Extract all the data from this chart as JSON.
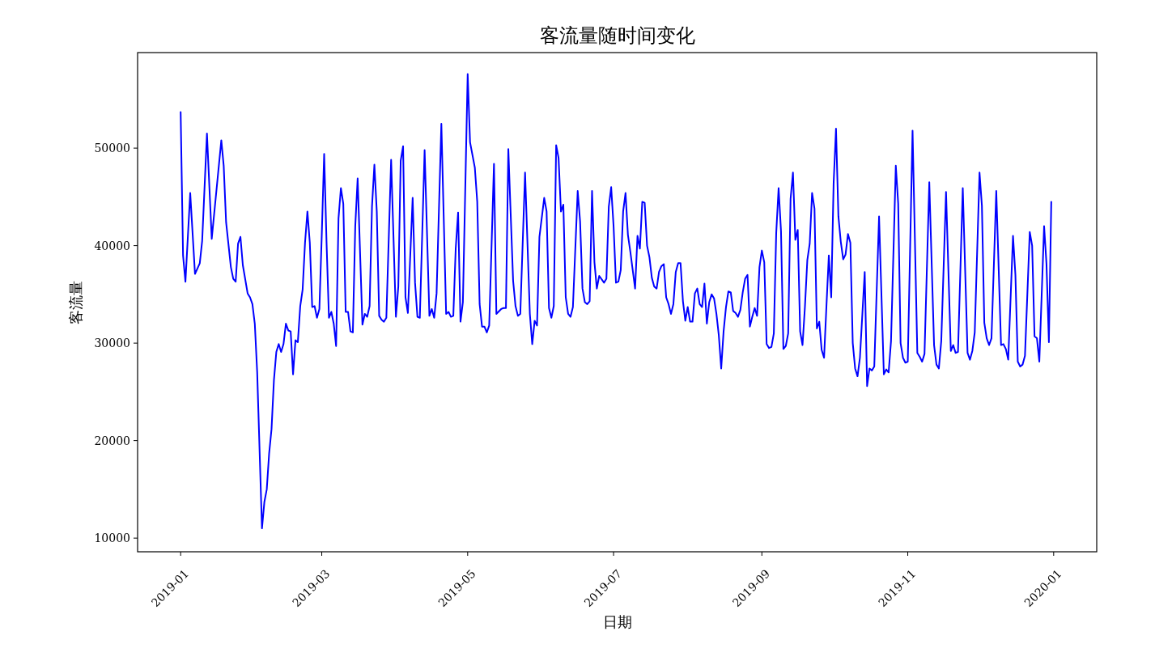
{
  "chart_data": {
    "type": "line",
    "title": "客流量随时间变化",
    "xlabel": "日期",
    "ylabel": "客流量",
    "color": "#0000ff",
    "xlim": [
      "2018-12-14",
      "2020-01-19"
    ],
    "ylim": [
      8600,
      59800
    ],
    "xticks": [
      "2019-01",
      "2019-03",
      "2019-05",
      "2019-07",
      "2019-09",
      "2019-11",
      "2020-01"
    ],
    "yticks": [
      10000,
      20000,
      30000,
      40000,
      50000
    ],
    "x": [
      "2019-01-01",
      "2019-01-02",
      "2019-01-03",
      "2019-01-05",
      "2019-01-07",
      "2019-01-09",
      "2019-01-10",
      "2019-01-12",
      "2019-01-14",
      "2019-01-18",
      "2019-01-19",
      "2019-01-20",
      "2019-01-22",
      "2019-01-23",
      "2019-01-24",
      "2019-01-25",
      "2019-01-26",
      "2019-01-27",
      "2019-01-29",
      "2019-01-30",
      "2019-01-31",
      "2019-02-01",
      "2019-02-02",
      "2019-02-04",
      "2019-02-05",
      "2019-02-06",
      "2019-02-07",
      "2019-02-08",
      "2019-02-09",
      "2019-02-10",
      "2019-02-11",
      "2019-02-12",
      "2019-02-13",
      "2019-02-14",
      "2019-02-15",
      "2019-02-16",
      "2019-02-17",
      "2019-02-18",
      "2019-02-19",
      "2019-02-20",
      "2019-02-21",
      "2019-02-22",
      "2019-02-23",
      "2019-02-24",
      "2019-02-25",
      "2019-02-26",
      "2019-02-27",
      "2019-02-28",
      "2019-03-01",
      "2019-03-02",
      "2019-03-03",
      "2019-03-04",
      "2019-03-05",
      "2019-03-06",
      "2019-03-07",
      "2019-03-08",
      "2019-03-09",
      "2019-03-10",
      "2019-03-11",
      "2019-03-12",
      "2019-03-13",
      "2019-03-14",
      "2019-03-15",
      "2019-03-16",
      "2019-03-18",
      "2019-03-19",
      "2019-03-20",
      "2019-03-21",
      "2019-03-22",
      "2019-03-23",
      "2019-03-24",
      "2019-03-25",
      "2019-03-26",
      "2019-03-27",
      "2019-03-28",
      "2019-03-30",
      "2019-04-01",
      "2019-04-02",
      "2019-04-03",
      "2019-04-04",
      "2019-04-05",
      "2019-04-06",
      "2019-04-08",
      "2019-04-09",
      "2019-04-10",
      "2019-04-11",
      "2019-04-13",
      "2019-04-15",
      "2019-04-16",
      "2019-04-17",
      "2019-04-18",
      "2019-04-20",
      "2019-04-22",
      "2019-04-23",
      "2019-04-24",
      "2019-04-25",
      "2019-04-26",
      "2019-04-27",
      "2019-04-28",
      "2019-04-29",
      "2019-05-01",
      "2019-05-02",
      "2019-05-04",
      "2019-05-05",
      "2019-05-06",
      "2019-05-07",
      "2019-05-08",
      "2019-05-09",
      "2019-05-10",
      "2019-05-12",
      "2019-05-13",
      "2019-05-15",
      "2019-05-16",
      "2019-05-17",
      "2019-05-18",
      "2019-05-20",
      "2019-05-21",
      "2019-05-22",
      "2019-05-23",
      "2019-05-25",
      "2019-05-27",
      "2019-05-28",
      "2019-05-29",
      "2019-05-30",
      "2019-05-31",
      "2019-06-02",
      "2019-06-03",
      "2019-06-04",
      "2019-06-05",
      "2019-06-06",
      "2019-06-07",
      "2019-06-08",
      "2019-06-09",
      "2019-06-10",
      "2019-06-11",
      "2019-06-12",
      "2019-06-13",
      "2019-06-14",
      "2019-06-16",
      "2019-06-17",
      "2019-06-18",
      "2019-06-19",
      "2019-06-20",
      "2019-06-21",
      "2019-06-22",
      "2019-06-23",
      "2019-06-24",
      "2019-06-25",
      "2019-06-27",
      "2019-06-28",
      "2019-06-29",
      "2019-06-30",
      "2019-07-01",
      "2019-07-02",
      "2019-07-03",
      "2019-07-04",
      "2019-07-05",
      "2019-07-06",
      "2019-07-07",
      "2019-07-08",
      "2019-07-10",
      "2019-07-11",
      "2019-07-12",
      "2019-07-13",
      "2019-07-14",
      "2019-07-15",
      "2019-07-16",
      "2019-07-17",
      "2019-07-18",
      "2019-07-19",
      "2019-07-20",
      "2019-07-21",
      "2019-07-22",
      "2019-07-23",
      "2019-07-24",
      "2019-07-25",
      "2019-07-26",
      "2019-07-27",
      "2019-07-28",
      "2019-07-29",
      "2019-07-30",
      "2019-07-31",
      "2019-08-01",
      "2019-08-02",
      "2019-08-03",
      "2019-08-04",
      "2019-08-05",
      "2019-08-06",
      "2019-08-07",
      "2019-08-08",
      "2019-08-09",
      "2019-08-10",
      "2019-08-11",
      "2019-08-12",
      "2019-08-13",
      "2019-08-14",
      "2019-08-15",
      "2019-08-16",
      "2019-08-17",
      "2019-08-18",
      "2019-08-19",
      "2019-08-20",
      "2019-08-21",
      "2019-08-22",
      "2019-08-23",
      "2019-08-24",
      "2019-08-25",
      "2019-08-26",
      "2019-08-27",
      "2019-08-28",
      "2019-08-29",
      "2019-08-30",
      "2019-08-31",
      "2019-09-01",
      "2019-09-02",
      "2019-09-03",
      "2019-09-04",
      "2019-09-05",
      "2019-09-06",
      "2019-09-07",
      "2019-09-08",
      "2019-09-09",
      "2019-09-10",
      "2019-09-11",
      "2019-09-12",
      "2019-09-13",
      "2019-09-14",
      "2019-09-15",
      "2019-09-16",
      "2019-09-17",
      "2019-09-18",
      "2019-09-19",
      "2019-09-20",
      "2019-09-21",
      "2019-09-22",
      "2019-09-23",
      "2019-09-24",
      "2019-09-25",
      "2019-09-26",
      "2019-09-27",
      "2019-09-28",
      "2019-09-29",
      "2019-09-30",
      "2019-10-01",
      "2019-10-02",
      "2019-10-03",
      "2019-10-04",
      "2019-10-05",
      "2019-10-06",
      "2019-10-07",
      "2019-10-08",
      "2019-10-09",
      "2019-10-10",
      "2019-10-11",
      "2019-10-12",
      "2019-10-14",
      "2019-10-15",
      "2019-10-16",
      "2019-10-17",
      "2019-10-18",
      "2019-10-20",
      "2019-10-22",
      "2019-10-23",
      "2019-10-24",
      "2019-10-25",
      "2019-10-27",
      "2019-10-28",
      "2019-10-29",
      "2019-10-30",
      "2019-10-31",
      "2019-11-01",
      "2019-11-03",
      "2019-11-05",
      "2019-11-06",
      "2019-11-07",
      "2019-11-08",
      "2019-11-10",
      "2019-11-12",
      "2019-11-13",
      "2019-11-14",
      "2019-11-15",
      "2019-11-17",
      "2019-11-19",
      "2019-11-20",
      "2019-11-21",
      "2019-11-22",
      "2019-11-24",
      "2019-11-26",
      "2019-11-27",
      "2019-11-28",
      "2019-11-29",
      "2019-12-01",
      "2019-12-02",
      "2019-12-03",
      "2019-12-04",
      "2019-12-05",
      "2019-12-06",
      "2019-12-08",
      "2019-12-10",
      "2019-12-11",
      "2019-12-12",
      "2019-12-13",
      "2019-12-15",
      "2019-12-16",
      "2019-12-17",
      "2019-12-18",
      "2019-12-19",
      "2019-12-20",
      "2019-12-22",
      "2019-12-23",
      "2019-12-24",
      "2019-12-25",
      "2019-12-26",
      "2019-12-28",
      "2019-12-29",
      "2019-12-30",
      "2019-12-31"
    ],
    "values": [
      53700,
      39000,
      36300,
      45400,
      37100,
      38200,
      40500,
      51500,
      40700,
      50800,
      48200,
      42400,
      37800,
      36600,
      36300,
      40200,
      40900,
      38000,
      35100,
      34700,
      34000,
      32000,
      27000,
      11000,
      13700,
      15000,
      18700,
      21200,
      26200,
      29100,
      29900,
      29100,
      29900,
      32000,
      31300,
      31200,
      26800,
      30300,
      30100,
      33800,
      35500,
      40300,
      43500,
      40300,
      33700,
      33800,
      32600,
      33500,
      41100,
      49400,
      40300,
      32600,
      33200,
      32000,
      29700,
      42800,
      45900,
      44300,
      33200,
      33200,
      31200,
      31100,
      42000,
      46900,
      31900,
      33000,
      32700,
      33800,
      44000,
      48300,
      43500,
      32800,
      32400,
      32200,
      32600,
      48800,
      32700,
      35800,
      48700,
      50200,
      34700,
      33100,
      44900,
      36200,
      32700,
      32600,
      49800,
      32800,
      33500,
      32600,
      35100,
      52500,
      33000,
      33200,
      32700,
      32800,
      39700,
      43400,
      32200,
      34200,
      57600,
      50600,
      48000,
      44500,
      34000,
      31700,
      31700,
      31100,
      31800,
      48400,
      33000,
      33500,
      33600,
      33600,
      49900,
      36400,
      33800,
      32800,
      33000,
      47500,
      33000,
      29900,
      32300,
      31800,
      40900,
      44900,
      43500,
      33600,
      32600,
      33800,
      50300,
      49000,
      43500,
      44200,
      34700,
      33000,
      32700,
      33700,
      45600,
      42500,
      35600,
      34200,
      34000,
      34300,
      45600,
      38300,
      35600,
      36900,
      36200,
      36600,
      44000,
      46000,
      42000,
      36200,
      36300,
      37500,
      43500,
      45400,
      41100,
      39400,
      35600,
      41000,
      39700,
      44500,
      44400,
      40000,
      38800,
      36700,
      35800,
      35600,
      37300,
      37900,
      38100,
      34700,
      34000,
      33000,
      34000,
      37300,
      38200,
      38200,
      34300,
      32300,
      33700,
      32200,
      32200,
      35100,
      35600,
      34000,
      33700,
      36100,
      32000,
      34200,
      35000,
      34600,
      33000,
      30800,
      27400,
      31200,
      33700,
      35300,
      35200,
      33300,
      33100,
      32700,
      33400,
      35200,
      36600,
      37000,
      31700,
      32700,
      33600,
      32800,
      37800,
      39500,
      38300,
      29900,
      29500,
      29600,
      31000,
      41300,
      45900,
      41500,
      29400,
      29700,
      31000,
      44800,
      47500,
      40600,
      41600,
      31200,
      29800,
      33700,
      38500,
      40200,
      45400,
      43800,
      31500,
      32200,
      29300,
      28500,
      33800,
      39000,
      34700,
      46400,
      52000,
      43000,
      40400,
      38600,
      39100,
      41200,
      40300,
      30000,
      27400,
      26600,
      28500,
      37300,
      25600,
      27400,
      27200,
      27600,
      43000,
      26800,
      27300,
      27000,
      30200,
      48200,
      44300,
      30000,
      28500,
      28000,
      28100,
      51800,
      29000,
      28600,
      28100,
      28900,
      46500,
      29800,
      27800,
      27400,
      30200,
      45500,
      29200,
      29800,
      29000,
      29100,
      45900,
      29000,
      28300,
      29200,
      31100,
      47500,
      44100,
      32100,
      30500,
      29800,
      30500,
      45600,
      29800,
      29900,
      29400,
      28300,
      41000,
      37000,
      28100,
      27600,
      27800,
      28700,
      41400,
      40000,
      30700,
      30500,
      28100,
      42000,
      38100,
      30100,
      44500
    ]
  }
}
